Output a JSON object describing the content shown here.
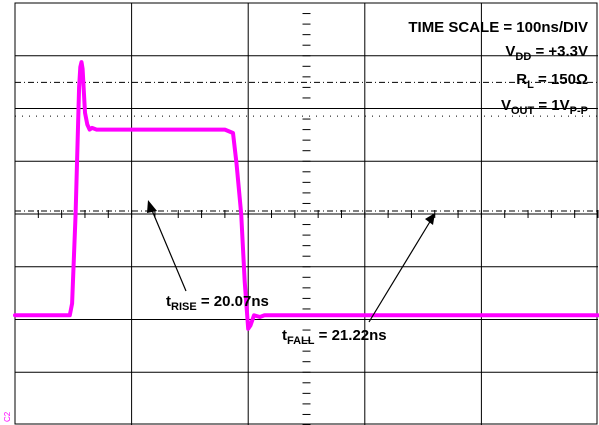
{
  "chart_data": {
    "type": "line",
    "title": "",
    "xlabel": "",
    "ylabel": "",
    "grid": true,
    "x_unit": "ns",
    "y_unit": "V",
    "xlim": [
      0,
      500
    ],
    "ylim": [
      -1.25,
      1.25
    ],
    "series": [
      {
        "name": "",
        "color": "#ff00ff",
        "points": [
          [
            0,
            -0.6
          ],
          [
            47,
            -0.6
          ],
          [
            49,
            -0.53
          ],
          [
            52,
            0.0
          ],
          [
            55,
            0.75
          ],
          [
            56,
            0.87
          ],
          [
            57,
            0.9
          ],
          [
            58,
            0.86
          ],
          [
            60,
            0.6
          ],
          [
            62,
            0.53
          ],
          [
            64,
            0.5
          ],
          [
            66,
            0.51
          ],
          [
            70,
            0.5
          ],
          [
            180,
            0.5
          ],
          [
            187,
            0.48
          ],
          [
            190,
            0.3
          ],
          [
            194,
            0.0
          ],
          [
            197,
            -0.4
          ],
          [
            200,
            -0.68
          ],
          [
            202,
            -0.66
          ],
          [
            205,
            -0.6
          ],
          [
            210,
            -0.61
          ],
          [
            214,
            -0.6
          ],
          [
            500,
            -0.6
          ]
        ]
      }
    ],
    "annotations": {
      "settings": [
        {
          "text": "TIME SCALE = 100ns/DIV"
        },
        {
          "text": "V",
          "sub": "DD",
          "rest": " = +3.3V"
        },
        {
          "text": "R",
          "sub": "L",
          "rest": " = 150Ω"
        },
        {
          "text": "V",
          "sub": "OUT",
          "rest": " = 1V",
          "sub2": "P-P"
        }
      ],
      "rise": {
        "text": "t",
        "sub": "RISE",
        "rest": " = 20.07ns"
      },
      "fall": {
        "text": "t",
        "sub": "FALL",
        "rest": " = 21.22ns"
      }
    },
    "channel_label": "C2"
  }
}
